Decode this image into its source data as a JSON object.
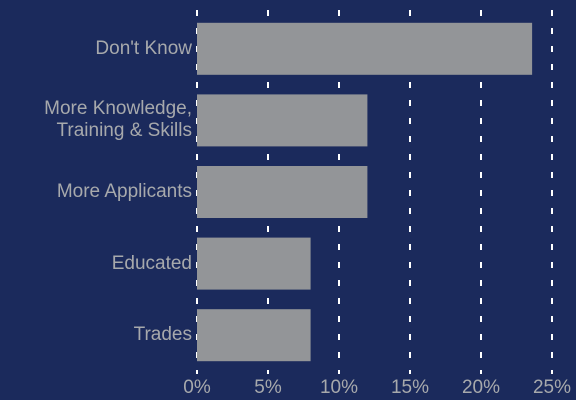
{
  "chart_data": {
    "type": "barh",
    "categories": [
      "Don't Know",
      "More Knowledge, Training & Skills",
      "More Applicants",
      "Educated",
      "Trades"
    ],
    "values": [
      23.6,
      12,
      12,
      8,
      8
    ],
    "color": "#939598",
    "xlim": [
      0,
      25
    ],
    "xticks": [
      {
        "value": 0,
        "label": "0%"
      },
      {
        "value": 5,
        "label": "5%"
      },
      {
        "value": 10,
        "label": "10%"
      },
      {
        "value": 15,
        "label": "15%"
      },
      {
        "value": 20,
        "label": "20%"
      },
      {
        "value": 25,
        "label": "25%"
      }
    ],
    "grid": true
  }
}
